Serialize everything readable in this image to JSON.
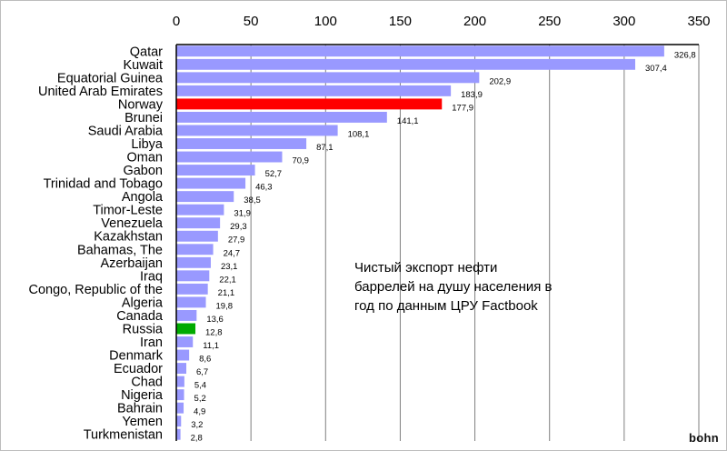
{
  "chart_data": {
    "type": "bar",
    "orientation": "horizontal",
    "title": "",
    "xlabel": "",
    "ylabel": "",
    "xlim": [
      0,
      350
    ],
    "x_ticks": [
      0,
      50,
      100,
      150,
      200,
      250,
      300,
      350
    ],
    "x_tick_labels": [
      "0",
      "50",
      "100",
      "150",
      "200",
      "250",
      "300",
      "350"
    ],
    "x_axis_position": "top",
    "grid": "vertical",
    "legend": "none",
    "categories": [
      "Qatar",
      "Kuwait",
      "Equatorial Guinea",
      "United Arab Emirates",
      "Norway",
      "Brunei",
      "Saudi Arabia",
      "Libya",
      "Oman",
      "Gabon",
      "Trinidad and Tobago",
      "Angola",
      "Timor-Leste",
      "Venezuela",
      "Kazakhstan",
      "Bahamas, The",
      "Azerbaijan",
      "Iraq",
      "Congo, Republic of the",
      "Algeria",
      "Canada",
      "Russia",
      "Iran",
      "Denmark",
      "Ecuador",
      "Chad",
      "Nigeria",
      "Bahrain",
      "Yemen",
      "Turkmenistan"
    ],
    "values": [
      326.8,
      307.4,
      202.9,
      183.9,
      177.9,
      141.1,
      108.1,
      87.1,
      70.9,
      52.7,
      46.3,
      38.5,
      31.9,
      29.3,
      27.9,
      24.7,
      23.1,
      22.1,
      21.1,
      19.8,
      13.6,
      12.8,
      11.1,
      8.6,
      6.7,
      5.4,
      5.2,
      4.9,
      3.2,
      2.8
    ],
    "value_labels": [
      "326,8",
      "307,4",
      "202,9",
      "183,9",
      "177,9",
      "141,1",
      "108,1",
      "87,1",
      "70,9",
      "52,7",
      "46,3",
      "38,5",
      "31,9",
      "29,3",
      "27,9",
      "24,7",
      "23,1",
      "22,1",
      "21,1",
      "19,8",
      "13,6",
      "12,8",
      "11,1",
      "8,6",
      "6,7",
      "5,4",
      "5,2",
      "4,9",
      "3,2",
      "2,8"
    ],
    "colors": {
      "default_bar": "#9999ff",
      "highlight": {
        "Norway": "#ff0000",
        "Russia": "#00aa00"
      },
      "grid": "#7f7f7f",
      "axis": "#000000"
    },
    "annotation": "Чистый экспорт нефти\nбаррелей на душу населения в\nгод по данным ЦРУ Factbook"
  },
  "watermark": "bohn"
}
